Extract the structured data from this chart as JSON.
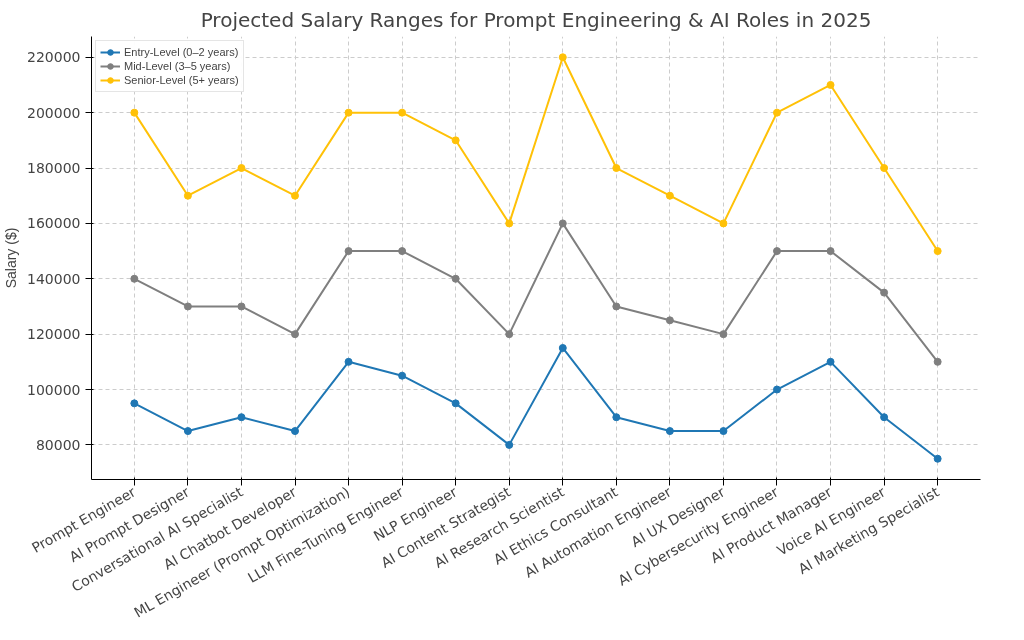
{
  "chart_data": {
    "type": "line",
    "title": "Projected Salary Ranges for Prompt Engineering & AI Roles in 2025",
    "ylabel": "Salary ($)",
    "categories": [
      "Prompt Engineer",
      "AI Prompt Designer",
      "Conversational AI Specialist",
      "AI Chatbot Developer",
      "ML Engineer (Prompt Optimization)",
      "LLM Fine-Tuning Engineer",
      "NLP Engineer",
      "AI Content Strategist",
      "AI Research Scientist",
      "AI Ethics Consultant",
      "AI Automation Engineer",
      "AI UX Designer",
      "AI Cybersecurity Engineer",
      "AI Product Manager",
      "Voice AI Engineer",
      "AI Marketing Specialist"
    ],
    "series": [
      {
        "name": "Entry-Level (0–2 years)",
        "color": "#1f77b4",
        "values": [
          95000,
          85000,
          90000,
          85000,
          110000,
          105000,
          95000,
          80000,
          115000,
          90000,
          85000,
          85000,
          100000,
          110000,
          90000,
          75000
        ]
      },
      {
        "name": "Mid-Level (3–5 years)",
        "color": "#7f7f7f",
        "values": [
          140000,
          130000,
          130000,
          120000,
          150000,
          150000,
          140000,
          120000,
          160000,
          130000,
          125000,
          120000,
          150000,
          150000,
          135000,
          110000
        ]
      },
      {
        "name": "Senior-Level (5+ years)",
        "color": "#ffc107",
        "values": [
          200000,
          170000,
          180000,
          170000,
          200000,
          200000,
          190000,
          160000,
          220000,
          180000,
          170000,
          160000,
          200000,
          210000,
          180000,
          150000
        ]
      }
    ],
    "ylim": [
      67500,
      227500
    ],
    "yticks": [
      80000,
      100000,
      120000,
      140000,
      160000,
      180000,
      200000,
      220000
    ],
    "grid": true,
    "legend": "top left",
    "marker": "circle",
    "line_style": "solid"
  }
}
